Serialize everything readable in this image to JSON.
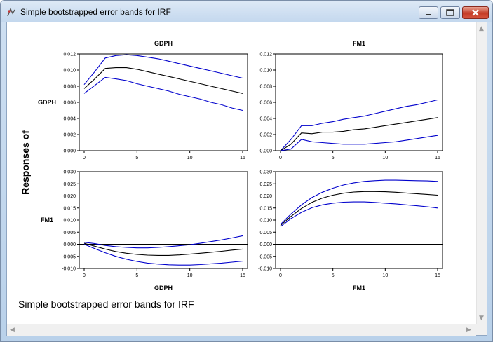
{
  "window": {
    "title": "Simple bootstrapped error bands for IRF",
    "icons": {
      "app": "eviews-app-icon",
      "minimize": "minimize-icon",
      "maximize": "maximize-icon",
      "close": "close-icon"
    },
    "caption": "Simple bootstrapped error bands for IRF",
    "y_label": "Responses of",
    "colors": {
      "band": "#0000cc",
      "center": "#000000",
      "zero": "#000000"
    }
  },
  "chart_data": [
    {
      "type": "line",
      "title": "GDPH",
      "row_label": "GDPH",
      "xlim": [
        0,
        15
      ],
      "ylim": [
        0,
        0.012
      ],
      "xticks": [
        "0",
        "5",
        "10",
        "15"
      ],
      "yticks": [
        "0.000",
        "0.002",
        "0.004",
        "0.006",
        "0.008",
        "0.010",
        "0.012"
      ],
      "x": [
        0,
        1,
        2,
        3,
        4,
        5,
        6,
        7,
        8,
        9,
        10,
        11,
        12,
        13,
        14,
        15
      ],
      "series": [
        {
          "values": [
            0.0082,
            0.0098,
            0.0115,
            0.0118,
            0.0119,
            0.0118,
            0.0116,
            0.0114,
            0.0111,
            0.0108,
            0.0105,
            0.0102,
            0.0099,
            0.0096,
            0.0093,
            0.009
          ]
        },
        {
          "values": [
            0.0077,
            0.0089,
            0.0102,
            0.0103,
            0.0103,
            0.0101,
            0.0098,
            0.0095,
            0.0092,
            0.0089,
            0.0086,
            0.0083,
            0.008,
            0.0077,
            0.0074,
            0.0071
          ]
        },
        {
          "values": [
            0.0071,
            0.0081,
            0.0091,
            0.0089,
            0.0087,
            0.0083,
            0.008,
            0.0077,
            0.0074,
            0.007,
            0.0067,
            0.0064,
            0.006,
            0.0057,
            0.0053,
            0.005
          ]
        }
      ]
    },
    {
      "type": "line",
      "title": "FM1",
      "xlim": [
        0,
        15
      ],
      "ylim": [
        0,
        0.012
      ],
      "xticks": [
        "0",
        "5",
        "10",
        "15"
      ],
      "yticks": [
        "0.000",
        "0.002",
        "0.004",
        "0.006",
        "0.008",
        "0.010",
        "0.012"
      ],
      "x": [
        0,
        1,
        2,
        3,
        4,
        5,
        6,
        7,
        8,
        9,
        10,
        11,
        12,
        13,
        14,
        15
      ],
      "series": [
        {
          "values": [
            0.0,
            0.0014,
            0.0031,
            0.0031,
            0.0034,
            0.0036,
            0.0039,
            0.0041,
            0.0043,
            0.0046,
            0.0049,
            0.0052,
            0.0055,
            0.0057,
            0.006,
            0.0063
          ]
        },
        {
          "values": [
            0.0,
            0.0008,
            0.0022,
            0.0021,
            0.0023,
            0.0023,
            0.0024,
            0.0026,
            0.0027,
            0.0029,
            0.0031,
            0.0033,
            0.0035,
            0.0037,
            0.0039,
            0.0041
          ]
        },
        {
          "values": [
            0.0,
            0.0002,
            0.0014,
            0.0011,
            0.001,
            0.0009,
            0.0008,
            0.0008,
            0.0008,
            0.0009,
            0.001,
            0.0011,
            0.0013,
            0.0015,
            0.0017,
            0.0019
          ]
        }
      ]
    },
    {
      "type": "line",
      "row_label": "FM1",
      "xlabel": "GDPH",
      "xlim": [
        0,
        15
      ],
      "ylim": [
        -0.01,
        0.03
      ],
      "zero_line": true,
      "xticks": [
        "0",
        "5",
        "10",
        "15"
      ],
      "yticks": [
        "-0.010",
        "-0.005",
        "0.000",
        "0.005",
        "0.010",
        "0.015",
        "0.020",
        "0.025",
        "0.030"
      ],
      "x": [
        0,
        1,
        2,
        3,
        4,
        5,
        6,
        7,
        8,
        9,
        10,
        11,
        12,
        13,
        14,
        15
      ],
      "series": [
        {
          "values": [
            0.0008,
            0.0003,
            -0.0005,
            -0.001,
            -0.0013,
            -0.0015,
            -0.0015,
            -0.0013,
            -0.001,
            -0.0006,
            -0.0002,
            0.0004,
            0.0011,
            0.0018,
            0.0026,
            0.0035
          ]
        },
        {
          "values": [
            0.0004,
            -0.0008,
            -0.002,
            -0.003,
            -0.0037,
            -0.0042,
            -0.0045,
            -0.0046,
            -0.0046,
            -0.0044,
            -0.0041,
            -0.0037,
            -0.0033,
            -0.0029,
            -0.0024,
            -0.002
          ]
        },
        {
          "values": [
            0.0,
            -0.0018,
            -0.0035,
            -0.005,
            -0.0062,
            -0.0071,
            -0.0078,
            -0.0082,
            -0.0085,
            -0.0086,
            -0.0086,
            -0.0084,
            -0.0081,
            -0.0078,
            -0.0074,
            -0.007
          ]
        }
      ]
    },
    {
      "type": "line",
      "xlabel": "FM1",
      "xlim": [
        0,
        15
      ],
      "ylim": [
        -0.01,
        0.03
      ],
      "zero_line": true,
      "xticks": [
        "0",
        "5",
        "10",
        "15"
      ],
      "yticks": [
        "-0.010",
        "-0.005",
        "0.000",
        "0.005",
        "0.010",
        "0.015",
        "0.020",
        "0.025",
        "0.030"
      ],
      "x": [
        0,
        1,
        2,
        3,
        4,
        5,
        6,
        7,
        8,
        9,
        10,
        11,
        12,
        13,
        14,
        15
      ],
      "series": [
        {
          "values": [
            0.0082,
            0.0125,
            0.0163,
            0.0193,
            0.0215,
            0.0232,
            0.0245,
            0.0254,
            0.026,
            0.0263,
            0.0265,
            0.0265,
            0.0264,
            0.0263,
            0.0262,
            0.026
          ]
        },
        {
          "values": [
            0.0078,
            0.0115,
            0.0148,
            0.0173,
            0.0191,
            0.0203,
            0.0211,
            0.0216,
            0.0218,
            0.0218,
            0.0217,
            0.0215,
            0.0212,
            0.0209,
            0.0206,
            0.0203
          ]
        },
        {
          "values": [
            0.0073,
            0.0106,
            0.0132,
            0.0151,
            0.0163,
            0.017,
            0.0174,
            0.0175,
            0.0175,
            0.0173,
            0.017,
            0.0167,
            0.0163,
            0.0159,
            0.0155,
            0.015
          ]
        }
      ]
    }
  ]
}
